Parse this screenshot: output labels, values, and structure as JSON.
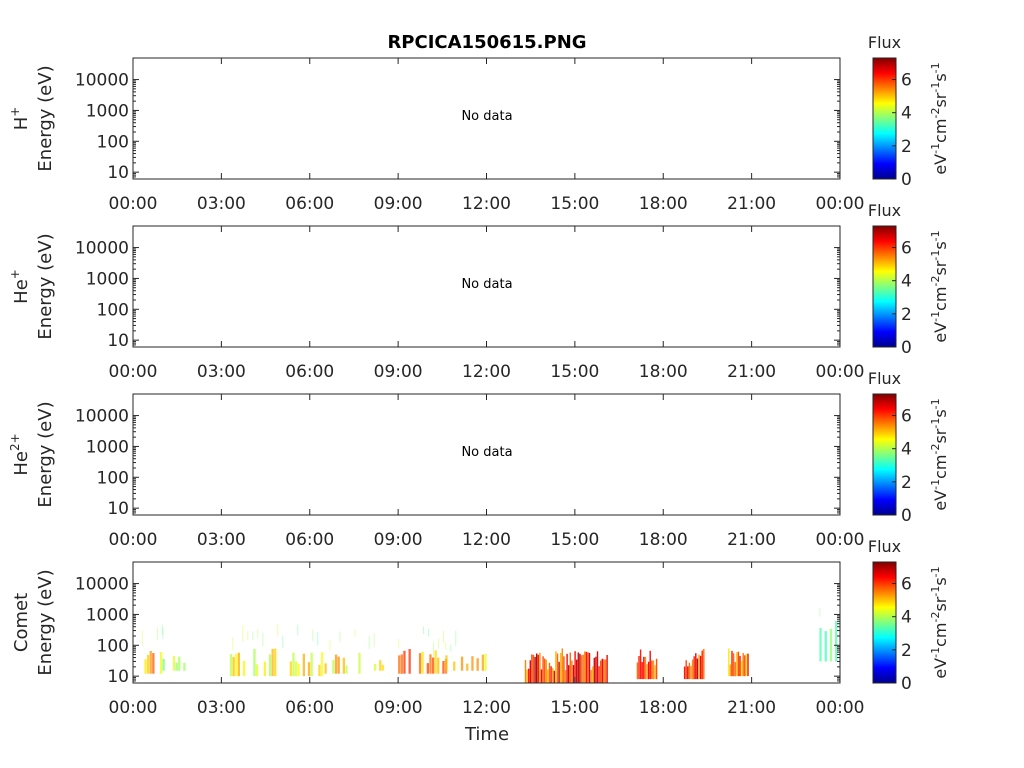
{
  "chart_data": {
    "type": "heatmap",
    "title": "RPCICA150615.PNG",
    "xlabel": "Time",
    "x_ticks": [
      "00:00",
      "03:00",
      "06:00",
      "09:00",
      "12:00",
      "15:00",
      "18:00",
      "21:00",
      "00:00"
    ],
    "xlim_hours": [
      0,
      24
    ],
    "y_scale": "log",
    "ylim": [
      6,
      50000
    ],
    "y_ticks": [
      {
        "value": 10,
        "label": "10"
      },
      {
        "value": 100,
        "label": "100"
      },
      {
        "value": 1000,
        "label": "1000"
      },
      {
        "value": 10000,
        "label": "10000"
      }
    ],
    "colorbar": {
      "label": "Flux",
      "units_base": "eV",
      "units_exp1": "-1",
      "units_cm": "cm",
      "units_exp2": "-2",
      "units_sr": "sr",
      "units_exp3": "-1",
      "units_s": "s",
      "units_exp4": "-1",
      "range": [
        0,
        7.3
      ],
      "ticks": [
        "0",
        "2",
        "4",
        "6"
      ],
      "colormap": "jet"
    },
    "panels": [
      {
        "species_base": "H",
        "species_sup": "+",
        "ylabel": "Energy (eV)",
        "message": "No data",
        "blocks": []
      },
      {
        "species_base": "He",
        "species_sup": "+",
        "ylabel": "Energy (eV)",
        "message": "No data",
        "blocks": []
      },
      {
        "species_base": "He",
        "species_sup": "2+",
        "ylabel": "Energy (eV)",
        "message": "No data",
        "blocks": []
      },
      {
        "species_base": "Comet",
        "species_sup": "",
        "ylabel": "Energy (eV)",
        "message": "",
        "blocks": [
          {
            "t0": 0.3,
            "t1": 1.0,
            "e0": 12,
            "e1": 90,
            "level": 5.8,
            "kind": "sparse"
          },
          {
            "t0": 1.0,
            "t1": 1.8,
            "e0": 15,
            "e1": 70,
            "level": 4.5,
            "kind": "sparse"
          },
          {
            "t0": 3.2,
            "t1": 6.5,
            "e0": 10,
            "e1": 90,
            "level": 5.0,
            "kind": "sparse"
          },
          {
            "t0": 6.5,
            "t1": 7.8,
            "e0": 12,
            "e1": 60,
            "level": 5.2,
            "kind": "sparse"
          },
          {
            "t0": 8.0,
            "t1": 9.0,
            "e0": 15,
            "e1": 45,
            "level": 5.5,
            "kind": "sparse"
          },
          {
            "t0": 9.0,
            "t1": 10.6,
            "e0": 12,
            "e1": 80,
            "level": 5.8,
            "kind": "sparse"
          },
          {
            "t0": 10.6,
            "t1": 12.0,
            "e0": 15,
            "e1": 60,
            "level": 5.4,
            "kind": "sparse"
          },
          {
            "t0": 13.3,
            "t1": 16.1,
            "e0": 6,
            "e1": 80,
            "level": 6.7,
            "kind": "dense"
          },
          {
            "t0": 17.1,
            "t1": 17.8,
            "e0": 8,
            "e1": 80,
            "level": 6.8,
            "kind": "dense"
          },
          {
            "t0": 18.7,
            "t1": 19.4,
            "e0": 8,
            "e1": 80,
            "level": 6.7,
            "kind": "dense"
          },
          {
            "t0": 20.2,
            "t1": 20.9,
            "e0": 10,
            "e1": 80,
            "level": 6.2,
            "kind": "dense"
          },
          {
            "t0": 23.3,
            "t1": 23.9,
            "e0": 30,
            "e1": 700,
            "level": 3.6,
            "kind": "sparse"
          }
        ]
      }
    ]
  }
}
